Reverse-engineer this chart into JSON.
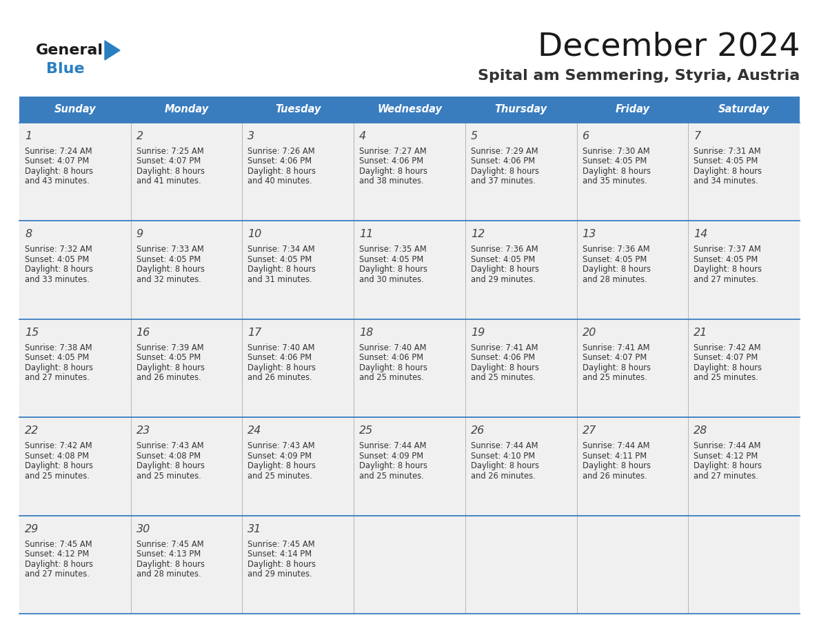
{
  "title": "December 2024",
  "subtitle": "Spital am Semmering, Styria, Austria",
  "days_of_week": [
    "Sunday",
    "Monday",
    "Tuesday",
    "Wednesday",
    "Thursday",
    "Friday",
    "Saturday"
  ],
  "header_bg": "#3a7dbf",
  "header_text_color": "#ffffff",
  "cell_bg": "#f0f0f0",
  "divider_color": "#3a7dbf",
  "day_number_color": "#444444",
  "cell_text_color": "#333333",
  "logo_general_color": "#1a1a1a",
  "logo_blue_color": "#2a7fc1",
  "logo_triangle_color": "#2a7fc1",
  "title_color": "#1a1a1a",
  "subtitle_color": "#333333",
  "weeks": [
    [
      {
        "day": 1,
        "sunrise": "7:24 AM",
        "sunset": "4:07 PM",
        "daylight_hours": 8,
        "daylight_minutes": 43
      },
      {
        "day": 2,
        "sunrise": "7:25 AM",
        "sunset": "4:07 PM",
        "daylight_hours": 8,
        "daylight_minutes": 41
      },
      {
        "day": 3,
        "sunrise": "7:26 AM",
        "sunset": "4:06 PM",
        "daylight_hours": 8,
        "daylight_minutes": 40
      },
      {
        "day": 4,
        "sunrise": "7:27 AM",
        "sunset": "4:06 PM",
        "daylight_hours": 8,
        "daylight_minutes": 38
      },
      {
        "day": 5,
        "sunrise": "7:29 AM",
        "sunset": "4:06 PM",
        "daylight_hours": 8,
        "daylight_minutes": 37
      },
      {
        "day": 6,
        "sunrise": "7:30 AM",
        "sunset": "4:05 PM",
        "daylight_hours": 8,
        "daylight_minutes": 35
      },
      {
        "day": 7,
        "sunrise": "7:31 AM",
        "sunset": "4:05 PM",
        "daylight_hours": 8,
        "daylight_minutes": 34
      }
    ],
    [
      {
        "day": 8,
        "sunrise": "7:32 AM",
        "sunset": "4:05 PM",
        "daylight_hours": 8,
        "daylight_minutes": 33
      },
      {
        "day": 9,
        "sunrise": "7:33 AM",
        "sunset": "4:05 PM",
        "daylight_hours": 8,
        "daylight_minutes": 32
      },
      {
        "day": 10,
        "sunrise": "7:34 AM",
        "sunset": "4:05 PM",
        "daylight_hours": 8,
        "daylight_minutes": 31
      },
      {
        "day": 11,
        "sunrise": "7:35 AM",
        "sunset": "4:05 PM",
        "daylight_hours": 8,
        "daylight_minutes": 30
      },
      {
        "day": 12,
        "sunrise": "7:36 AM",
        "sunset": "4:05 PM",
        "daylight_hours": 8,
        "daylight_minutes": 29
      },
      {
        "day": 13,
        "sunrise": "7:36 AM",
        "sunset": "4:05 PM",
        "daylight_hours": 8,
        "daylight_minutes": 28
      },
      {
        "day": 14,
        "sunrise": "7:37 AM",
        "sunset": "4:05 PM",
        "daylight_hours": 8,
        "daylight_minutes": 27
      }
    ],
    [
      {
        "day": 15,
        "sunrise": "7:38 AM",
        "sunset": "4:05 PM",
        "daylight_hours": 8,
        "daylight_minutes": 27
      },
      {
        "day": 16,
        "sunrise": "7:39 AM",
        "sunset": "4:05 PM",
        "daylight_hours": 8,
        "daylight_minutes": 26
      },
      {
        "day": 17,
        "sunrise": "7:40 AM",
        "sunset": "4:06 PM",
        "daylight_hours": 8,
        "daylight_minutes": 26
      },
      {
        "day": 18,
        "sunrise": "7:40 AM",
        "sunset": "4:06 PM",
        "daylight_hours": 8,
        "daylight_minutes": 25
      },
      {
        "day": 19,
        "sunrise": "7:41 AM",
        "sunset": "4:06 PM",
        "daylight_hours": 8,
        "daylight_minutes": 25
      },
      {
        "day": 20,
        "sunrise": "7:41 AM",
        "sunset": "4:07 PM",
        "daylight_hours": 8,
        "daylight_minutes": 25
      },
      {
        "day": 21,
        "sunrise": "7:42 AM",
        "sunset": "4:07 PM",
        "daylight_hours": 8,
        "daylight_minutes": 25
      }
    ],
    [
      {
        "day": 22,
        "sunrise": "7:42 AM",
        "sunset": "4:08 PM",
        "daylight_hours": 8,
        "daylight_minutes": 25
      },
      {
        "day": 23,
        "sunrise": "7:43 AM",
        "sunset": "4:08 PM",
        "daylight_hours": 8,
        "daylight_minutes": 25
      },
      {
        "day": 24,
        "sunrise": "7:43 AM",
        "sunset": "4:09 PM",
        "daylight_hours": 8,
        "daylight_minutes": 25
      },
      {
        "day": 25,
        "sunrise": "7:44 AM",
        "sunset": "4:09 PM",
        "daylight_hours": 8,
        "daylight_minutes": 25
      },
      {
        "day": 26,
        "sunrise": "7:44 AM",
        "sunset": "4:10 PM",
        "daylight_hours": 8,
        "daylight_minutes": 26
      },
      {
        "day": 27,
        "sunrise": "7:44 AM",
        "sunset": "4:11 PM",
        "daylight_hours": 8,
        "daylight_minutes": 26
      },
      {
        "day": 28,
        "sunrise": "7:44 AM",
        "sunset": "4:12 PM",
        "daylight_hours": 8,
        "daylight_minutes": 27
      }
    ],
    [
      {
        "day": 29,
        "sunrise": "7:45 AM",
        "sunset": "4:12 PM",
        "daylight_hours": 8,
        "daylight_minutes": 27
      },
      {
        "day": 30,
        "sunrise": "7:45 AM",
        "sunset": "4:13 PM",
        "daylight_hours": 8,
        "daylight_minutes": 28
      },
      {
        "day": 31,
        "sunrise": "7:45 AM",
        "sunset": "4:14 PM",
        "daylight_hours": 8,
        "daylight_minutes": 29
      },
      null,
      null,
      null,
      null
    ]
  ]
}
